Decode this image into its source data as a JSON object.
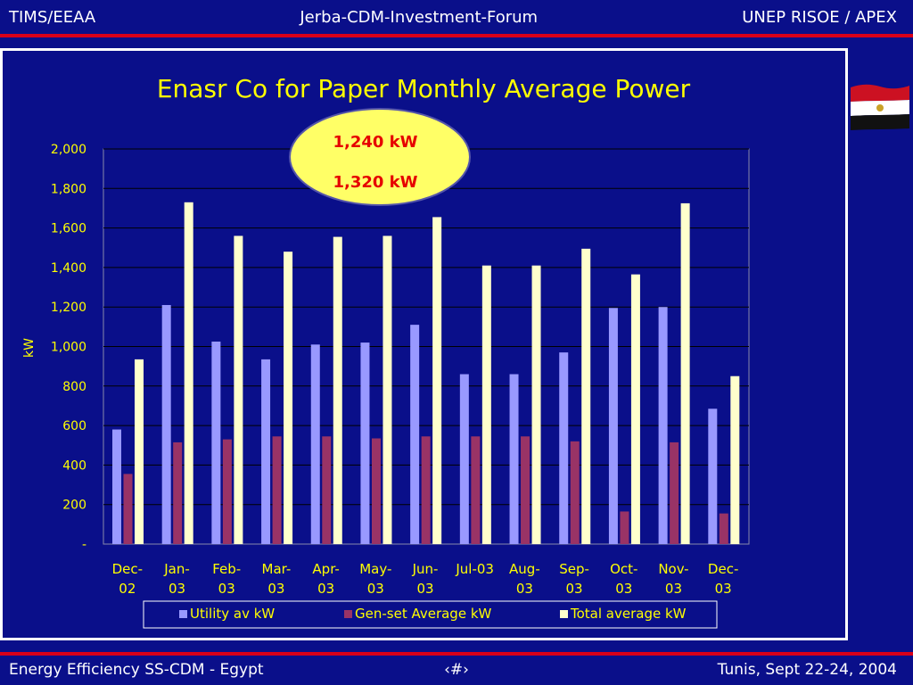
{
  "header": {
    "left": "TIMS/EEAA",
    "center": "Jerba-CDM-Investment-Forum",
    "right": "UNEP RISOE / APEX"
  },
  "footer": {
    "left": "Energy Efficiency SS-CDM - Egypt",
    "center": "‹#›",
    "right": "Tunis,  Sept 22-24, 2004"
  },
  "callout": {
    "line1": "1,240 kW",
    "line2": "1,320 kW"
  },
  "colors": {
    "background": "#0a0f8a",
    "accent_red": "#d90019",
    "title_yellow": "#ffff00",
    "utility": "#9999ff",
    "genset": "#993366",
    "total": "#ffffcc"
  },
  "flag_icon": "egypt-flag-icon",
  "chart_data": {
    "type": "bar",
    "title": "Enasr Co for Paper Monthly Average Power",
    "ylabel": "kW",
    "xlabel": "",
    "ylim": [
      0,
      2000
    ],
    "yticks": [
      "-",
      "200",
      "400",
      "600",
      "800",
      "1,000",
      "1,200",
      "1,400",
      "1,600",
      "1,800",
      "2,000"
    ],
    "ytick_values": [
      0,
      200,
      400,
      600,
      800,
      1000,
      1200,
      1400,
      1600,
      1800,
      2000
    ],
    "grid": true,
    "legend_position": "bottom",
    "categories": [
      [
        "Dec-",
        "02"
      ],
      [
        "Jan-",
        "03"
      ],
      [
        "Feb-",
        "03"
      ],
      [
        "Mar-",
        "03"
      ],
      [
        "Apr-",
        "03"
      ],
      [
        "May-",
        "03"
      ],
      [
        "Jun-",
        "03"
      ],
      [
        "Jul-03"
      ],
      [
        "Aug-",
        "03"
      ],
      [
        "Sep-",
        "03"
      ],
      [
        "Oct-",
        "03"
      ],
      [
        "Nov-",
        "03"
      ],
      [
        "Dec-",
        "03"
      ]
    ],
    "series": [
      {
        "name": "Utility av kW",
        "color": "#9999ff",
        "values": [
          580,
          1210,
          1025,
          935,
          1010,
          1020,
          1110,
          860,
          860,
          970,
          1195,
          1200,
          685
        ]
      },
      {
        "name": "Gen-set Average kW",
        "color": "#993366",
        "values": [
          355,
          515,
          530,
          545,
          545,
          535,
          545,
          545,
          545,
          520,
          165,
          515,
          155
        ]
      },
      {
        "name": "Total average kW",
        "color": "#ffffcc",
        "values": [
          935,
          1730,
          1560,
          1480,
          1555,
          1560,
          1655,
          1410,
          1410,
          1495,
          1365,
          1725,
          850
        ]
      }
    ]
  }
}
